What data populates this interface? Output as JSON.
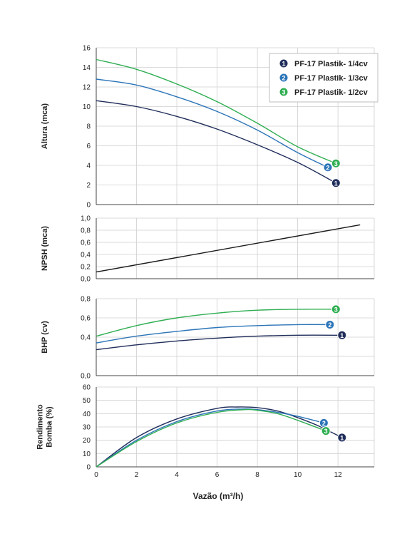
{
  "colors": {
    "s1": "#1f2d5a",
    "s2": "#2b74b8",
    "s3": "#2fae52",
    "npsh": "#1a1a1a",
    "grid": "#cfcfcf",
    "axis": "#444444"
  },
  "legend": {
    "placement": "top-right",
    "entries": [
      {
        "num": "1",
        "label": "PF-17 Plastik- 1/4cv"
      },
      {
        "num": "2",
        "label": "PF-17 Plastik- 1/3cv"
      },
      {
        "num": "3",
        "label": "PF-17 Plastik- 1/2cv"
      }
    ]
  },
  "xaxis": {
    "label": "Vazão (m³/h)",
    "min": 0,
    "max": 13.8,
    "ticks": [
      0,
      2,
      4,
      6,
      8,
      10,
      12
    ],
    "grid": [
      0,
      2,
      4,
      6,
      8,
      10,
      12,
      13.8
    ]
  },
  "chart_data": [
    {
      "type": "line",
      "id": "altura",
      "ylabel": [
        "Altura (mca)"
      ],
      "ylim": [
        0,
        16
      ],
      "yticks": [
        0,
        2,
        4,
        6,
        8,
        10,
        12,
        14,
        16
      ],
      "ytick_labels": [
        "0",
        "2",
        "4",
        "6",
        "8",
        "10",
        "12",
        "14",
        "16"
      ],
      "grid": true,
      "series": [
        {
          "num": "1",
          "x": [
            0,
            2,
            4,
            6,
            8,
            10,
            11.9
          ],
          "y": [
            10.6,
            10.0,
            9.0,
            7.7,
            6.1,
            4.3,
            2.2
          ]
        },
        {
          "num": "2",
          "x": [
            0,
            2,
            4,
            6,
            8,
            10,
            11.5
          ],
          "y": [
            12.8,
            12.2,
            11.0,
            9.5,
            7.6,
            5.3,
            3.8
          ]
        },
        {
          "num": "3",
          "x": [
            0,
            2,
            4,
            6,
            8,
            10,
            11.9
          ],
          "y": [
            14.8,
            13.8,
            12.3,
            10.5,
            8.3,
            5.9,
            4.2
          ]
        }
      ]
    },
    {
      "type": "line",
      "id": "npsh",
      "ylabel": [
        "NPSH (mca)"
      ],
      "ylim": [
        0,
        1.0
      ],
      "yticks": [
        0,
        0.2,
        0.4,
        0.6,
        0.8,
        1.0
      ],
      "ytick_labels": [
        "0,0",
        "0,2",
        "0,4",
        "0,6",
        "0,8",
        "1,0"
      ],
      "grid": true,
      "series": [
        {
          "x": [
            0,
            13.1
          ],
          "y": [
            0.11,
            0.89
          ]
        }
      ]
    },
    {
      "type": "line",
      "id": "bhp",
      "ylabel": [
        "BHP (cv)"
      ],
      "ylim": [
        0,
        0.8
      ],
      "yticks": [
        0,
        0.2,
        0.4,
        0.6,
        0.8
      ],
      "ytick_labels": [
        "0,0",
        "",
        "0,4",
        "0,6",
        "0,8"
      ],
      "grid": true,
      "series": [
        {
          "num": "1",
          "x": [
            0,
            2,
            4,
            6,
            8,
            10,
            12.2
          ],
          "y": [
            0.27,
            0.32,
            0.36,
            0.39,
            0.41,
            0.42,
            0.42
          ]
        },
        {
          "num": "2",
          "x": [
            0,
            2,
            4,
            6,
            8,
            10,
            11.6
          ],
          "y": [
            0.34,
            0.41,
            0.46,
            0.5,
            0.52,
            0.53,
            0.53
          ]
        },
        {
          "num": "3",
          "x": [
            0,
            2,
            4,
            6,
            8,
            10,
            11.9
          ],
          "y": [
            0.41,
            0.52,
            0.6,
            0.65,
            0.68,
            0.69,
            0.69
          ]
        }
      ]
    },
    {
      "type": "line",
      "id": "rendimento",
      "ylabel": [
        "Rendimento",
        "Bomba (%)"
      ],
      "ylim": [
        0,
        60
      ],
      "yticks": [
        0,
        10,
        20,
        30,
        40,
        50,
        60
      ],
      "ytick_labels": [
        "0",
        "10",
        "20",
        "30",
        "40",
        "50",
        "60"
      ],
      "grid": true,
      "series": [
        {
          "num": "1",
          "x": [
            0,
            2,
            4,
            6,
            7,
            8,
            9,
            10,
            11,
            12.2
          ],
          "y": [
            0,
            22,
            36,
            44,
            45,
            44.5,
            42,
            37,
            31,
            22
          ]
        },
        {
          "num": "2",
          "x": [
            0,
            2,
            4,
            6,
            7.3,
            8,
            9,
            10,
            11.3
          ],
          "y": [
            0,
            20,
            34,
            42,
            43.5,
            43,
            41,
            38,
            33
          ]
        },
        {
          "num": "3",
          "x": [
            0,
            2,
            4,
            6,
            7.4,
            8,
            9,
            10,
            11.4
          ],
          "y": [
            0,
            19,
            33,
            41,
            43,
            42.5,
            40,
            35,
            27
          ]
        }
      ]
    }
  ]
}
